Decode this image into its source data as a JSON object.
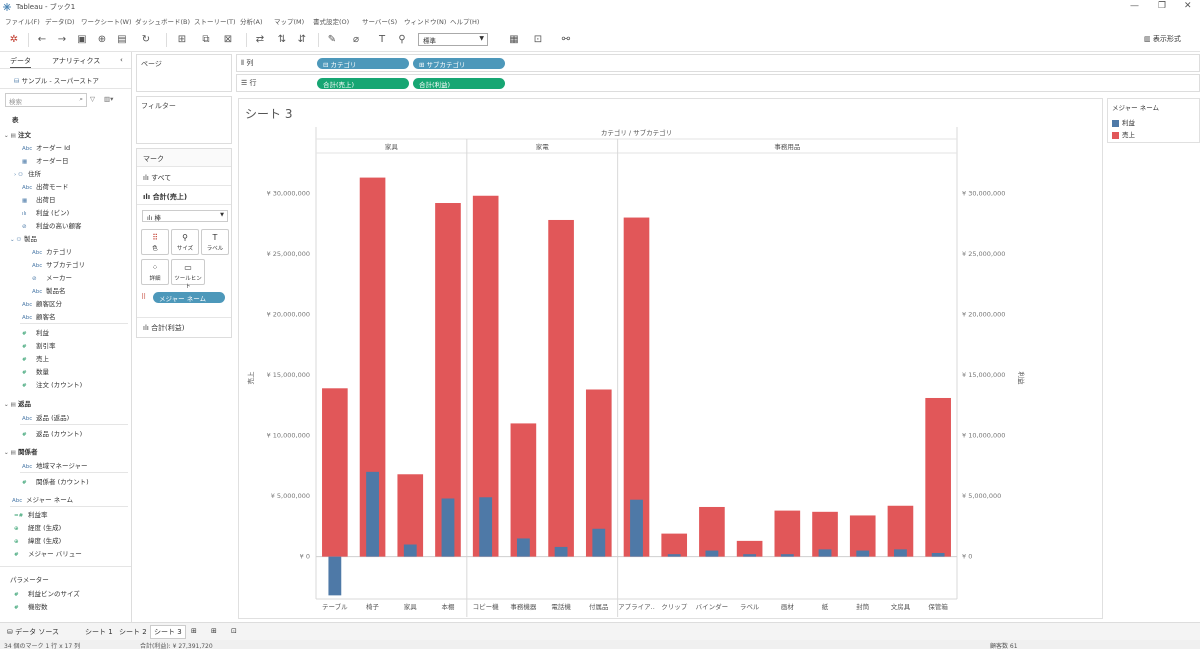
{
  "window": {
    "title": "Tableau - ブック1"
  },
  "menu": [
    "ファイル(F)",
    "データ(D)",
    "ワークシート(W)",
    "ダッシュボード(B)",
    "ストーリー(T)",
    "分析(A)",
    "マップ(M)",
    "書式設定(O)",
    "サーバー(S)",
    "ウィンドウ(N)",
    "ヘルプ(H)"
  ],
  "toolbar": {
    "fit_select": "標準",
    "show_me": "表示形式"
  },
  "data_pane": {
    "tab_data": "データ",
    "tab_analytics": "アナリティクス",
    "datasource": "サンプル - スーパーストア",
    "search_placeholder": "検索",
    "section_table": "表",
    "groups": {
      "orders": "注文",
      "orders_items": [
        "オーダー Id",
        "オーダー日",
        "住所",
        "出荷モード",
        "出荷日",
        "利益 (ビン)",
        "利益の高い顧客",
        "製品",
        "カテゴリ",
        "サブカテゴリ",
        "メーカー",
        "製品名",
        "顧客区分",
        "顧客名",
        "利益",
        "割引率",
        "売上",
        "数量",
        "注文 (カウント)"
      ],
      "returns": "返品",
      "returns_items": [
        "返品 (返品)",
        "返品 (カウント)"
      ],
      "people": "関係者",
      "people_items": [
        "地域マネージャー",
        "関係者 (カウント)"
      ],
      "extra_items": [
        "メジャー ネーム",
        "利益率",
        "経度 (生成)",
        "緯度 (生成)",
        "メジャー バリュー"
      ],
      "params": "パラメーター",
      "params_items": [
        "利益ビンのサイズ",
        "機密数"
      ]
    }
  },
  "shelves": {
    "pages": "ページ",
    "filters": "フィルター",
    "columns_label": "列",
    "rows_label": "行",
    "columns": [
      "カテゴリ",
      "サブカテゴリ"
    ],
    "rows": [
      "合計(売上)",
      "合計(利益)"
    ]
  },
  "marks": {
    "title": "マーク",
    "all": "すべて",
    "card1": "合計(売上)",
    "mark_type": "棒",
    "buttons": [
      "色",
      "サイズ",
      "ラベル",
      "詳細",
      "ツールヒント"
    ],
    "pill": "メジャー ネーム",
    "card2": "合計(利益)"
  },
  "legend": {
    "title": "メジャー ネーム",
    "items": [
      {
        "label": "利益",
        "color": "#4e79a7"
      },
      {
        "label": "売上",
        "color": "#e15759"
      }
    ]
  },
  "sheet": {
    "title": "シート 3"
  },
  "tabs": [
    "データ ソース",
    "シート 1",
    "シート 2",
    "シート 3"
  ],
  "status": {
    "left": "34 個のマーク  1 行 x 17 列",
    "mid": "合計(利益): ¥ 27,391,720",
    "right": "顧客数 61"
  },
  "chart_data": {
    "type": "bar",
    "title": "",
    "header_title": "カテゴリ / サブカテゴリ",
    "groups": [
      {
        "name": "家具",
        "count": 4
      },
      {
        "name": "家電",
        "count": 4
      },
      {
        "name": "事務用品",
        "count": 9
      }
    ],
    "categories": [
      "テーブル",
      "椅子",
      "家具",
      "本棚",
      "コピー機",
      "事務機器",
      "電話機",
      "付属品",
      "アプライア..",
      "クリップ",
      "バインダー",
      "ラベル",
      "画材",
      "紙",
      "封筒",
      "文房具",
      "保管箱"
    ],
    "series": [
      {
        "name": "売上",
        "color": "#e15759",
        "values": [
          13900000,
          31300000,
          6800000,
          29200000,
          29800000,
          11000000,
          27800000,
          13800000,
          28000000,
          1900000,
          4100000,
          1300000,
          3800000,
          3700000,
          3400000,
          4200000,
          13100000
        ]
      },
      {
        "name": "利益",
        "color": "#4e79a7",
        "values": [
          -3200000,
          7000000,
          1000000,
          4800000,
          4900000,
          1500000,
          800000,
          2300000,
          4700000,
          200000,
          500000,
          200000,
          200000,
          600000,
          500000,
          600000,
          300000
        ]
      }
    ],
    "ylabel": "売上",
    "y2label": "利益",
    "ylim": [
      -3500000,
      33000000
    ],
    "yticks": [
      "¥ 0",
      "¥ 5,000,000",
      "¥ 10,000,000",
      "¥ 15,000,000",
      "¥ 20,000,000",
      "¥ 25,000,000",
      "¥ 30,000,000"
    ],
    "ytick_values": [
      0,
      5000000,
      10000000,
      15000000,
      20000000,
      25000000,
      30000000
    ]
  }
}
